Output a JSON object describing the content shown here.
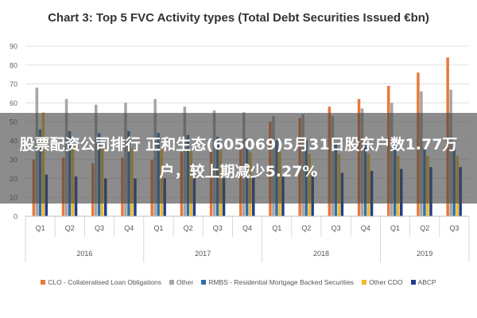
{
  "headline": "股票配资公司排行 正和生态(605069)5月31日股东户数1.77万户，较上期减少5.27%",
  "chart_data": {
    "type": "bar",
    "title": "Chart 3: Top 5 FVC Activity types (Total Debt Securities Issued €bn)",
    "xlabel": "",
    "ylabel": "",
    "ylim": [
      0,
      90
    ],
    "yticks": [
      0,
      10,
      20,
      30,
      40,
      50,
      60,
      70,
      80,
      90
    ],
    "grid": true,
    "legend_position": "bottom",
    "categories": [
      "Q1",
      "Q2",
      "Q3",
      "Q4",
      "Q1",
      "Q2",
      "Q3",
      "Q4",
      "Q1",
      "Q2",
      "Q3",
      "Q4",
      "Q1",
      "Q2",
      "Q3"
    ],
    "year_groups": [
      {
        "label": "2016",
        "span": 4
      },
      {
        "label": "2017",
        "span": 4
      },
      {
        "label": "2018",
        "span": 4
      },
      {
        "label": "2019",
        "span": 3
      }
    ],
    "series": [
      {
        "name": "CLO - Collateralised Loan Obligations",
        "color": "#e8793b",
        "values": [
          30,
          31,
          28,
          31,
          30,
          34,
          34,
          37,
          50,
          52,
          58,
          62,
          69,
          76,
          84
        ]
      },
      {
        "name": "Other",
        "color": "#a5a5a5",
        "values": [
          68,
          62,
          59,
          60,
          62,
          58,
          56,
          55,
          53,
          54,
          53,
          57,
          60,
          66,
          67
        ]
      },
      {
        "name": "RMBS - Residential Mortgage Backed Securities",
        "color": "#2f6fa8",
        "values": [
          46,
          45,
          44,
          45,
          44,
          43,
          42,
          41,
          40,
          40,
          39,
          38,
          38,
          36,
          35
        ]
      },
      {
        "name": "Other CDO",
        "color": "#f2b928",
        "values": [
          55,
          38,
          37,
          36,
          36,
          35,
          35,
          34,
          34,
          33,
          33,
          33,
          32,
          32,
          32
        ]
      },
      {
        "name": "ABCP",
        "color": "#1f3e8c",
        "values": [
          22,
          21,
          20,
          20,
          20,
          20,
          20,
          21,
          21,
          22,
          23,
          24,
          25,
          26,
          26
        ]
      }
    ]
  }
}
